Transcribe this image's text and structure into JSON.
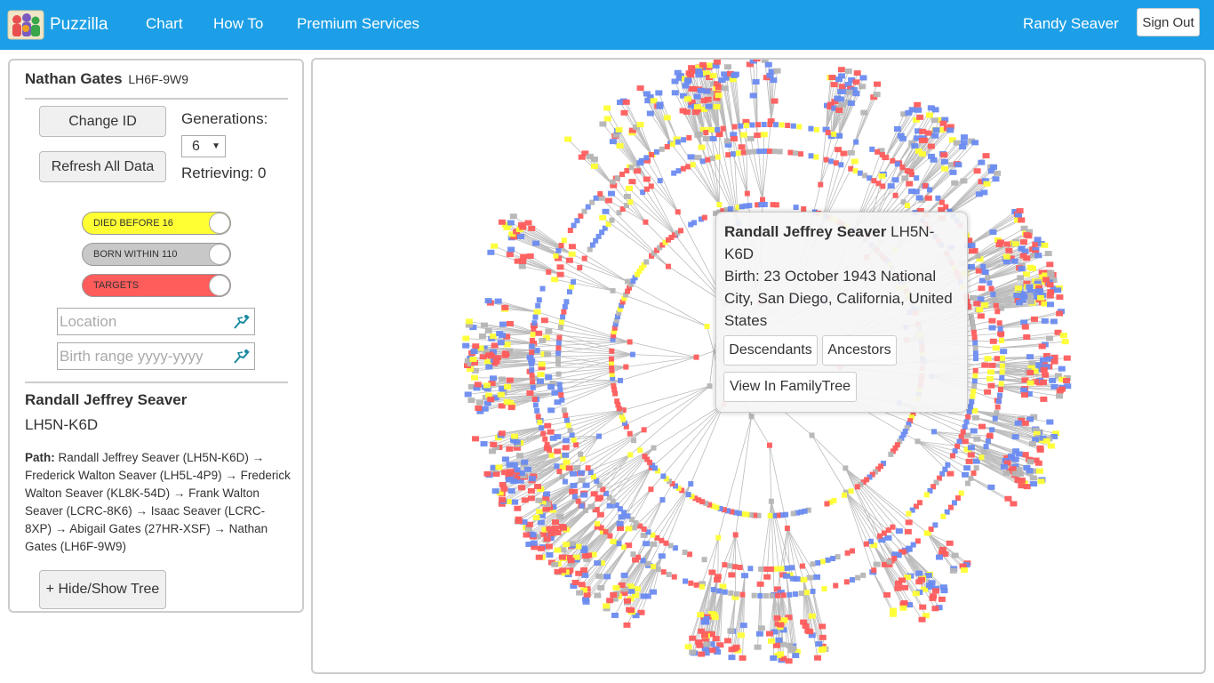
{
  "nav": {
    "brand": "Puzzilla",
    "links": [
      "Chart",
      "How To",
      "Premium Services"
    ],
    "user": "Randy Seaver",
    "signout": "Sign Out"
  },
  "root_person": {
    "name": "Nathan Gates",
    "id": "LH6F-9W9"
  },
  "controls": {
    "change_id": "Change ID",
    "refresh": "Refresh All Data",
    "generations_label": "Generations:",
    "generations_value": "6",
    "retrieving": "Retrieving: 0"
  },
  "toggles": [
    {
      "label": "DIED BEFORE 16",
      "color": "#ffff33",
      "on": true
    },
    {
      "label": "BORN WITHIN 110",
      "color": "#c8c8c8",
      "on": true
    },
    {
      "label": "TARGETS",
      "color": "#ff5c5c",
      "on": true
    }
  ],
  "filters": {
    "location_placeholder": "Location",
    "birth_placeholder": "Birth range yyyy-yyyy"
  },
  "selected": {
    "name": "Randall Jeffrey Seaver",
    "id": "LH5N-K6D",
    "path_label": "Path:",
    "path": "Randall Jeffrey Seaver (LH5N-K6D) → Frederick Walton Seaver (LH5L-4P9) → Frederick Walton Seaver (KL8K-54D) → Frank Walton Seaver (LCRC-8K6) → Isaac Seaver (LCRC-8XP) → Abigail Gates (27HR-XSF) → Nathan Gates (LH6F-9W9)"
  },
  "hide_show": {
    "icon": "+",
    "label": "Hide/Show Tree"
  },
  "popup": {
    "name": "Randall Jeffrey Seaver",
    "id": "LH5N-K6D",
    "birth": "Birth: 23 October 1943 National City, San Diego, California, United States",
    "descendants": "Descendants",
    "ancestors": "Ancestors",
    "view": "View In FamilyTree"
  },
  "colors": {
    "navbar": "#1c9fe6",
    "male": "#6a8bf0",
    "female": "#ff5c5c",
    "died_young": "#ffff33",
    "within_110": "#b5b5b5",
    "link": "#bcbcbc"
  }
}
